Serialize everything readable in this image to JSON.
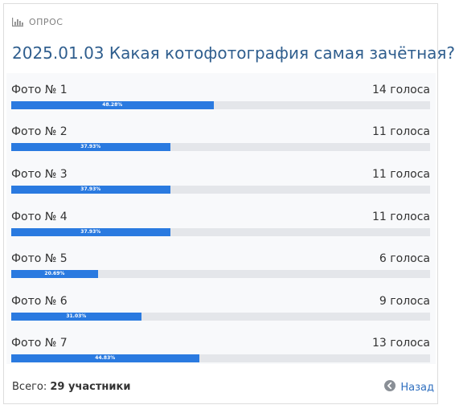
{
  "header": {
    "section_label": "ОПРОС",
    "icon": "bar-chart-icon"
  },
  "poll": {
    "title": "2025.01.03 Какая котофотография самая зачётная?",
    "options": [
      {
        "label": "Фото № 1",
        "votes_text": "14 голоса",
        "percent_text": "48.28%",
        "percent": 48.28
      },
      {
        "label": "Фото № 2",
        "votes_text": "11 голоса",
        "percent_text": "37.93%",
        "percent": 37.93
      },
      {
        "label": "Фото № 3",
        "votes_text": "11 голоса",
        "percent_text": "37.93%",
        "percent": 37.93
      },
      {
        "label": "Фото № 4",
        "votes_text": "11 голоса",
        "percent_text": "37.93%",
        "percent": 37.93
      },
      {
        "label": "Фото № 5",
        "votes_text": "6 голоса",
        "percent_text": "20.69%",
        "percent": 20.69
      },
      {
        "label": "Фото № 6",
        "votes_text": "9 голоса",
        "percent_text": "31.03%",
        "percent": 31.03
      },
      {
        "label": "Фото № 7",
        "votes_text": "13 голоса",
        "percent_text": "44.83%",
        "percent": 44.83
      }
    ]
  },
  "footer": {
    "total_prefix": "Всего:",
    "total_value": "29 участники",
    "back_label": "Назад",
    "back_icon": "arrow-left-circle-icon"
  },
  "colors": {
    "accent": "#2a7ae0",
    "title": "#2f5e8e",
    "track": "#e4e6ea"
  }
}
